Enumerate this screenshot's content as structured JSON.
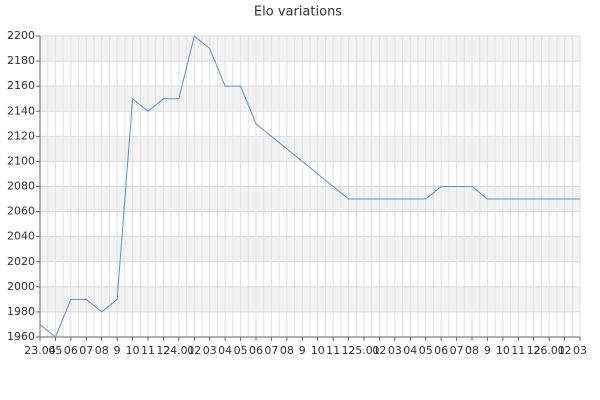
{
  "chart_data": {
    "type": "line",
    "title": "Elo variations",
    "categories": [
      "23.04",
      "05",
      "06",
      "07",
      "08",
      "9",
      "10",
      "11",
      "12",
      "24.01",
      "02",
      "03",
      "04",
      "05",
      "06",
      "07",
      "08",
      "9",
      "10",
      "11",
      "12",
      "25.01",
      "02",
      "03",
      "04",
      "05",
      "06",
      "07",
      "08",
      "9",
      "10",
      "11",
      "12",
      "26.01",
      "02",
      "03"
    ],
    "series": [
      {
        "name": "Elo",
        "color": "#5b8fd6",
        "values": [
          1970,
          1960,
          1990,
          1990,
          1980,
          1990,
          2150,
          2140,
          2150,
          2150,
          2200,
          2190,
          2160,
          2160,
          2130,
          2120,
          2110,
          2100,
          2090,
          2080,
          2070,
          2070,
          2070,
          2070,
          2070,
          2070,
          2080,
          2080,
          2080,
          2070,
          2070,
          2070,
          2070,
          2070,
          2070,
          2070
        ]
      }
    ],
    "ylim": [
      1960,
      2200
    ],
    "yticks": [
      1960,
      1980,
      2000,
      2020,
      2040,
      2060,
      2080,
      2100,
      2120,
      2140,
      2160,
      2180,
      2200
    ],
    "grid": true
  }
}
